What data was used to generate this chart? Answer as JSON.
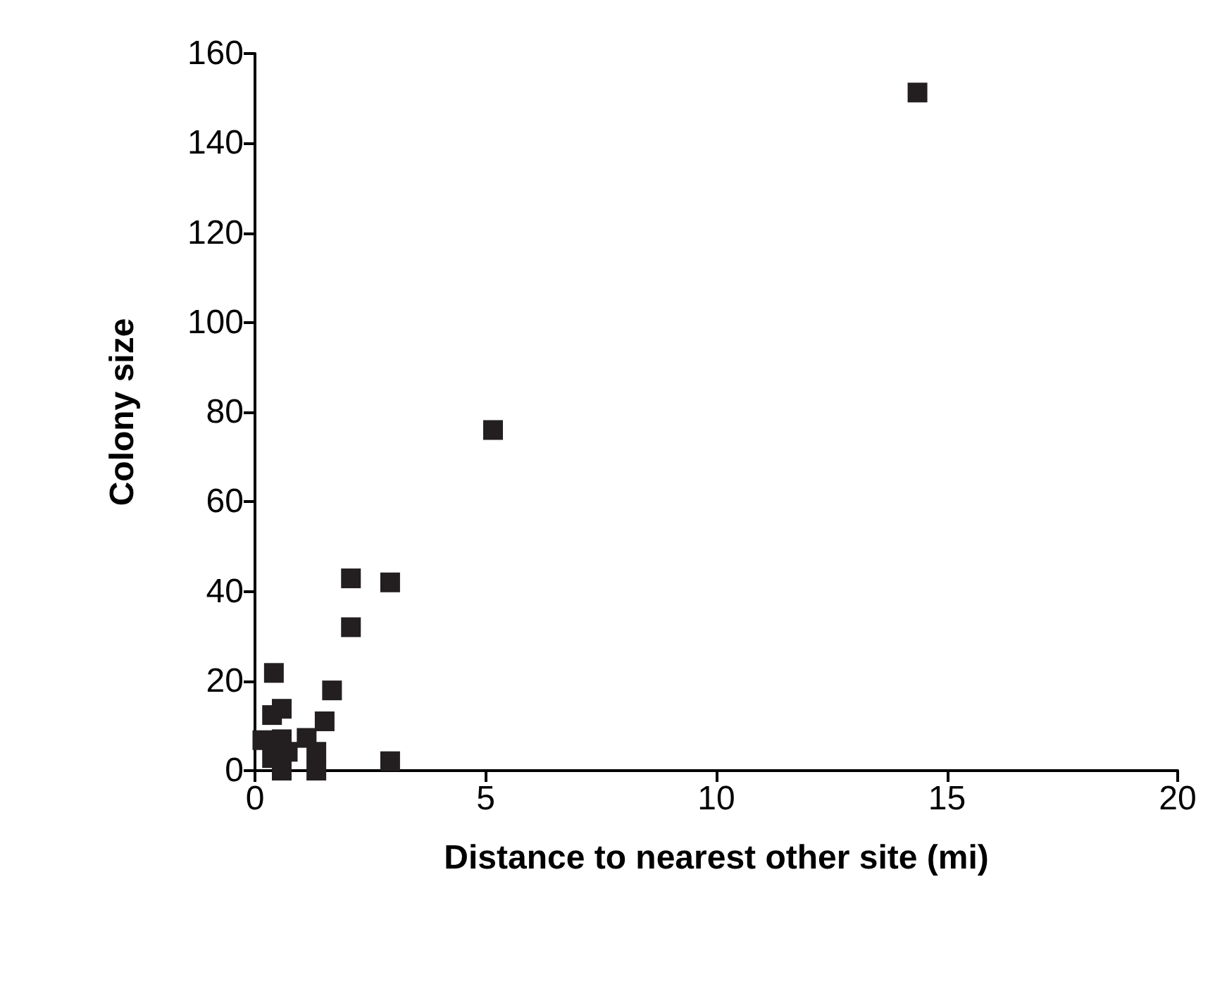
{
  "chart_data": {
    "type": "scatter",
    "xlabel": "Distance to nearest other site (mi)",
    "ylabel": "Colony size",
    "marker": "square",
    "grid": false,
    "series": [
      {
        "color": "#231f20",
        "x": [
          14.36,
          5.16,
          2.08,
          2.93,
          2.08,
          0.41,
          1.67,
          0.58,
          0.37,
          1.51,
          1.12,
          0.16,
          0.58,
          0.71,
          1.33,
          0.37,
          2.93,
          0.58,
          1.33
        ],
        "values": [
          151.3,
          76,
          42.9,
          42,
          32,
          21.8,
          17.9,
          13.8,
          12.4,
          11,
          7.3,
          6.8,
          7,
          4.2,
          4.2,
          2.8,
          2.1,
          0,
          0
        ]
      }
    ],
    "xlim": [
      0,
      20
    ],
    "xticks": [
      0,
      5,
      10,
      15,
      20
    ],
    "ylim": [
      0,
      160
    ],
    "yticks": [
      0,
      20,
      40,
      60,
      80,
      100,
      120,
      140,
      160
    ]
  }
}
